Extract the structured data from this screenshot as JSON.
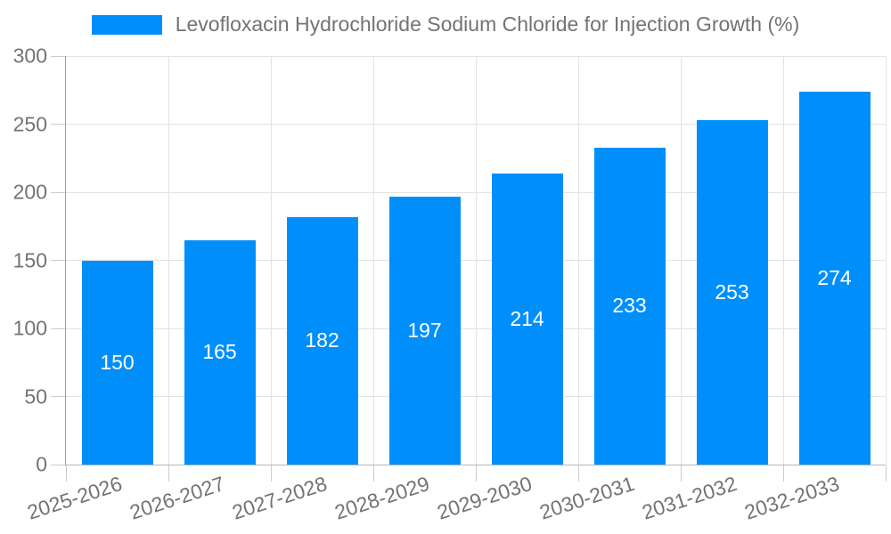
{
  "chart_data": {
    "type": "bar",
    "title": "",
    "legend": "Levofloxacin Hydrochloride Sodium Chloride for Injection Growth (%)",
    "categories": [
      "2025-2026",
      "2026-2027",
      "2027-2028",
      "2028-2029",
      "2029-2030",
      "2030-2031",
      "2031-2032",
      "2032-2033"
    ],
    "values": [
      150,
      165,
      182,
      197,
      214,
      233,
      253,
      274
    ],
    "xlabel": "",
    "ylabel": "",
    "ylim": [
      0,
      300
    ],
    "yticks": [
      0,
      50,
      100,
      150,
      200,
      250,
      300
    ],
    "grid": "on",
    "legend_position": "top-center",
    "value_labels": "inside-center"
  },
  "colors": {
    "bar": "#008ffa",
    "grid": "#e3e3e3",
    "axis_y": "#9e9e9e",
    "axis_x": "#b5b5b5",
    "tick": "#cccccc",
    "text": "#737373",
    "value_label": "#ffffff"
  }
}
